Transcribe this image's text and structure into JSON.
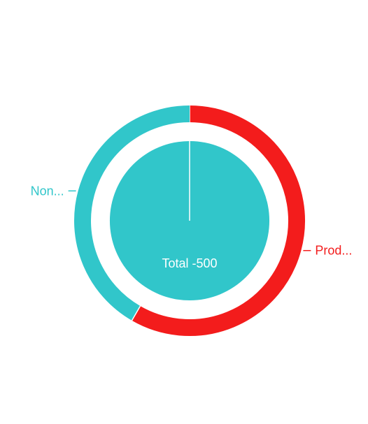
{
  "chart_data": {
    "type": "pie",
    "subtype": "nested-donut",
    "title": "",
    "center_label": "Total -500",
    "outer_ring": {
      "categories": [
        "Prod...",
        "Non..."
      ],
      "values": [
        7,
        5
      ],
      "colors": [
        "#f31c1c",
        "#31c6ca"
      ]
    },
    "inner_pie": {
      "categories": [
        "Total"
      ],
      "values": [
        500
      ],
      "colors": [
        "#31c6ca"
      ]
    },
    "legend": "none",
    "label_placement": "outside"
  }
}
